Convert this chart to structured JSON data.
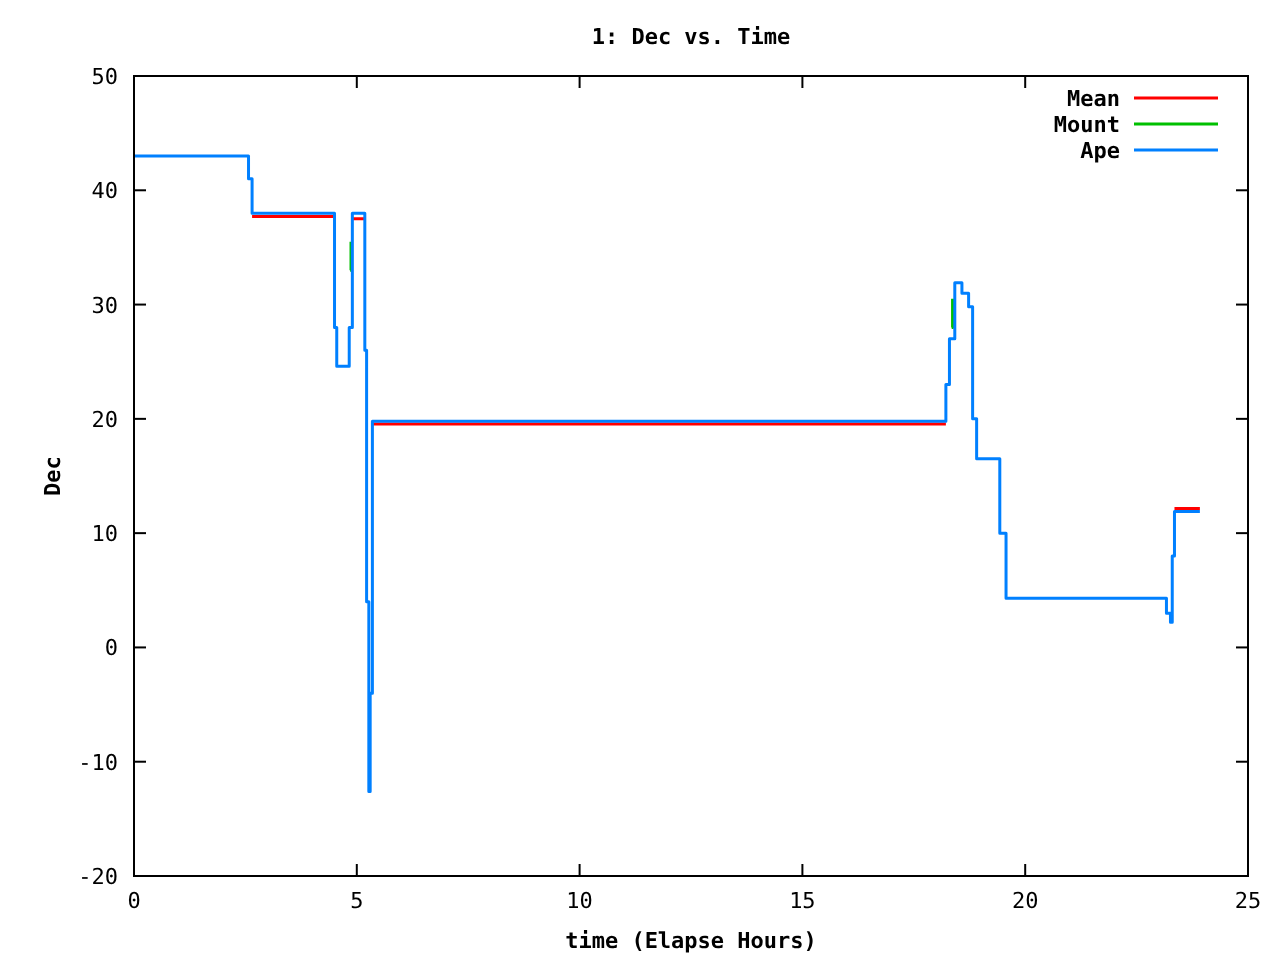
{
  "chart_data": {
    "type": "step",
    "title": "1: Dec vs. Time",
    "xlabel": "time (Elapse Hours)",
    "ylabel": "Dec",
    "x": [
      0,
      2.57,
      2.65,
      4.5,
      4.55,
      4.83,
      4.9,
      5.18,
      5.22,
      5.27,
      5.3,
      5.35,
      18.22,
      18.3,
      18.42,
      18.58,
      18.73,
      18.82,
      18.91,
      19.43,
      19.57,
      23.17,
      23.26,
      23.3,
      23.35,
      23.92
    ],
    "series": [
      {
        "name": "Mean",
        "color": "#ff0000",
        "x": [
          2.65,
          4.5,
          4.55,
          4.9,
          5.18,
          5.2,
          5.35,
          18.22,
          18.3,
          23.35,
          23.92
        ],
        "values": [
          37.7,
          37.7,
          null,
          37.5,
          37.5,
          null,
          19.55,
          19.55,
          null,
          12.15,
          12.15
        ]
      },
      {
        "name": "Mount",
        "color": "#00c000",
        "x": [
          4.85,
          4.87,
          4.9,
          18.35,
          18.37
        ],
        "values": [
          33,
          35.5,
          null,
          28,
          30.5
        ]
      },
      {
        "name": "Ape",
        "color": "#0080ff",
        "values": [
          43,
          41,
          38,
          28,
          24.6,
          28,
          38,
          26,
          4,
          -12.6,
          -4,
          19.8,
          23,
          27,
          31.9,
          31,
          29.8,
          20,
          16.5,
          10,
          4.3,
          3,
          2.2,
          8,
          11.9,
          11.9
        ]
      }
    ],
    "xlim": [
      0,
      25
    ],
    "xticks": [
      0,
      5,
      10,
      15,
      20,
      25
    ],
    "ylim": [
      -20,
      50
    ],
    "yticks": [
      -20,
      -10,
      0,
      10,
      20,
      30,
      40,
      50
    ],
    "grid": false,
    "legend": "top right"
  }
}
